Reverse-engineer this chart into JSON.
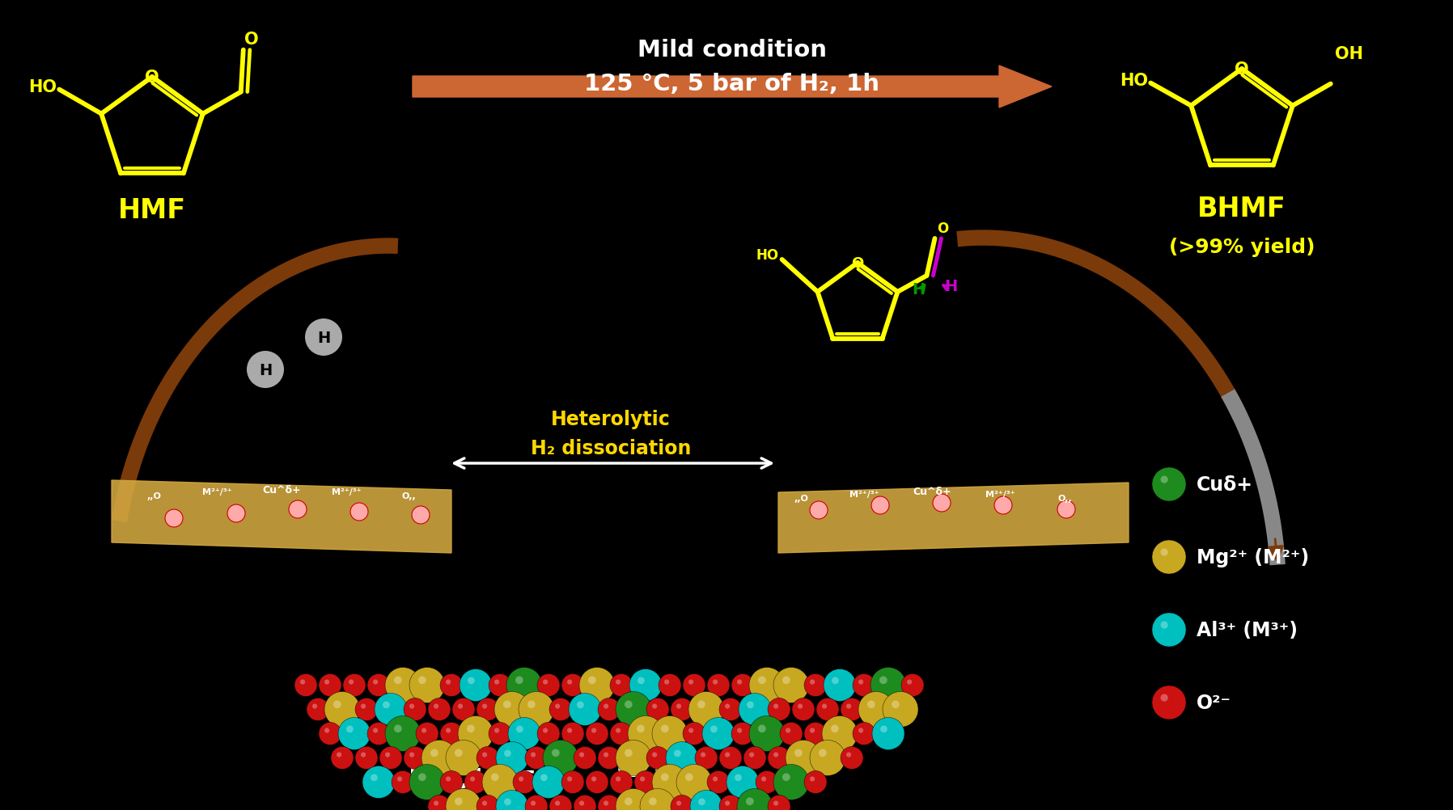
{
  "background_color": "#000000",
  "yellow_color": "#FFFF00",
  "orange_color": "#CC6633",
  "brown_color": "#7B3A0A",
  "title_line1": "Mild condition",
  "title_line2": "125 °C, 5 bar of H₂, 1h",
  "hmf_label": "HMF",
  "bhmf_label": "BHMF",
  "bhmf_yield": "(>99% yield)",
  "heterolytic_line1": "Heterolytic",
  "heterolytic_line2": "H₂ dissociation",
  "legend_cu": "Cuδ+",
  "legend_mg": "Mg²⁺ (M²⁺)",
  "legend_al": "Al³⁺ (M³⁺)",
  "legend_o": "O²⁻",
  "cu_color": "#1E8B1E",
  "mg_color": "#C8A820",
  "al_color": "#00BFBF",
  "o_color": "#CC1111",
  "surface_color": "#D4A840",
  "green_h": "#009900",
  "magenta": "#CC00CC",
  "gray_h": "#AAAAAA"
}
